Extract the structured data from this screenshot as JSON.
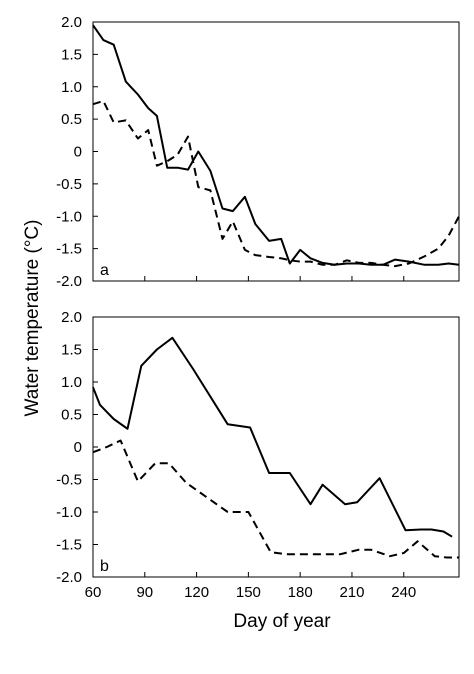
{
  "figure": {
    "ylabel": "Water temperature (°C)",
    "xlabel": "Day of year"
  },
  "chart_data": [
    {
      "type": "line",
      "panel_label": "a",
      "xlim": [
        60,
        272
      ],
      "ylim": [
        -2.0,
        2.0
      ],
      "x_ticks": [
        60,
        90,
        120,
        150,
        180,
        210,
        240
      ],
      "y_ticks": [
        2.0,
        1.5,
        1.0,
        0.5,
        0,
        -0.5,
        -1.0,
        -1.5,
        -2.0
      ],
      "y_tick_labels": [
        "2.0",
        "1.5",
        "1.0",
        "0.5",
        "0",
        "-0.5",
        "-1.0",
        "-1.5",
        "-2.0"
      ],
      "x_tick_labels_shown": false,
      "grid": false,
      "series": [
        {
          "style": "solid",
          "x": [
            60,
            66,
            72,
            79,
            86,
            92,
            97,
            103,
            109,
            115,
            121,
            128,
            135,
            141,
            148,
            154,
            162,
            169,
            174,
            180,
            186,
            193,
            200,
            207,
            214,
            221,
            228,
            235,
            243,
            252,
            260,
            266,
            272
          ],
          "y": [
            1.95,
            1.72,
            1.65,
            1.08,
            0.88,
            0.67,
            0.55,
            -0.25,
            -0.25,
            -0.28,
            0.0,
            -0.3,
            -0.88,
            -0.92,
            -0.7,
            -1.12,
            -1.38,
            -1.35,
            -1.73,
            -1.52,
            -1.65,
            -1.72,
            -1.75,
            -1.73,
            -1.73,
            -1.75,
            -1.75,
            -1.67,
            -1.7,
            -1.75,
            -1.75,
            -1.73,
            -1.75
          ]
        },
        {
          "style": "dashed",
          "x": [
            60,
            66,
            72,
            79,
            86,
            92,
            97,
            103,
            109,
            115,
            121,
            128,
            135,
            141,
            148,
            154,
            162,
            169,
            174,
            180,
            186,
            193,
            200,
            207,
            214,
            221,
            228,
            235,
            243,
            252,
            260,
            266,
            272
          ],
          "y": [
            0.73,
            0.78,
            0.45,
            0.48,
            0.2,
            0.33,
            -0.22,
            -0.15,
            -0.05,
            0.23,
            -0.55,
            -0.6,
            -1.35,
            -1.08,
            -1.52,
            -1.6,
            -1.63,
            -1.65,
            -1.68,
            -1.7,
            -1.7,
            -1.75,
            -1.75,
            -1.68,
            -1.72,
            -1.72,
            -1.75,
            -1.77,
            -1.73,
            -1.62,
            -1.5,
            -1.3,
            -1.0
          ]
        }
      ]
    },
    {
      "type": "line",
      "panel_label": "b",
      "xlim": [
        60,
        272
      ],
      "ylim": [
        -2.0,
        2.0
      ],
      "x_ticks": [
        60,
        90,
        120,
        150,
        180,
        210,
        240
      ],
      "x_tick_labels": [
        "60",
        "90",
        "120",
        "150",
        "180",
        "210",
        "240"
      ],
      "y_ticks": [
        2.0,
        1.5,
        1.0,
        0.5,
        0,
        -0.5,
        -1.0,
        -1.5,
        -2.0
      ],
      "y_tick_labels": [
        "2.0",
        "1.5",
        "1.0",
        "0.5",
        "0",
        "-0.5",
        "-1.0",
        "-1.5",
        "-2.0"
      ],
      "grid": false,
      "series": [
        {
          "style": "solid",
          "x": [
            60,
            64,
            72,
            80,
            88,
            97,
            106,
            118,
            138,
            151,
            162,
            174,
            186,
            193,
            206,
            213,
            226,
            241,
            250,
            256,
            263,
            268
          ],
          "y": [
            0.92,
            0.65,
            0.43,
            0.28,
            1.25,
            1.5,
            1.68,
            1.2,
            0.35,
            0.3,
            -0.4,
            -0.4,
            -0.88,
            -0.58,
            -0.88,
            -0.85,
            -0.48,
            -1.28,
            -1.27,
            -1.27,
            -1.3,
            -1.38
          ]
        },
        {
          "style": "dashed",
          "x": [
            60,
            68,
            76,
            86,
            96,
            104,
            114,
            122,
            138,
            150,
            163,
            173,
            180,
            196,
            203,
            214,
            221,
            232,
            240,
            248,
            258,
            265,
            272
          ],
          "y": [
            -0.08,
            0.0,
            0.1,
            -0.53,
            -0.25,
            -0.25,
            -0.55,
            -0.7,
            -1.0,
            -1.0,
            -1.62,
            -1.65,
            -1.65,
            -1.65,
            -1.65,
            -1.58,
            -1.58,
            -1.68,
            -1.63,
            -1.45,
            -1.68,
            -1.7,
            -1.7
          ]
        }
      ]
    }
  ]
}
